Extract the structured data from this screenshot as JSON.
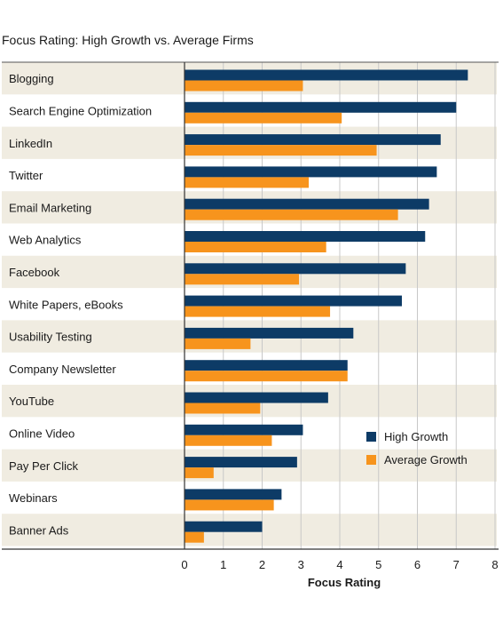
{
  "title": "Focus Rating: High Growth vs. Average Firms",
  "colors": {
    "high": "#0d3b66",
    "average": "#f7941d",
    "band": "#f0ece1",
    "grid": "#c8c8c8"
  },
  "chart_data": {
    "type": "bar",
    "orientation": "horizontal",
    "title": "Focus Rating: High Growth vs. Average Firms",
    "xlabel": "Focus Rating",
    "ylabel": "",
    "xlim": [
      0,
      8
    ],
    "xticks": [
      "0",
      "1",
      "2",
      "3",
      "4",
      "5",
      "6",
      "7",
      "8"
    ],
    "grid": true,
    "legend_position": "lower-right",
    "categories": [
      "Blogging",
      "Search Engine Optimization",
      "LinkedIn",
      "Twitter",
      "Email Marketing",
      "Web Analytics",
      "Facebook",
      "White Papers, eBooks",
      "Usability Testing",
      "Company Newsletter",
      "YouTube",
      "Online Video",
      "Pay Per Click",
      "Webinars",
      "Banner Ads"
    ],
    "series": [
      {
        "name": "High Growth",
        "values": [
          7.3,
          7.0,
          6.6,
          6.5,
          6.3,
          6.2,
          5.7,
          5.6,
          4.35,
          4.2,
          3.7,
          3.05,
          2.9,
          2.5,
          2.0
        ]
      },
      {
        "name": "Average Growth",
        "values": [
          3.05,
          4.05,
          4.95,
          3.2,
          5.5,
          3.65,
          2.95,
          3.75,
          1.7,
          4.2,
          1.95,
          2.25,
          0.75,
          2.3,
          0.5
        ]
      }
    ]
  }
}
